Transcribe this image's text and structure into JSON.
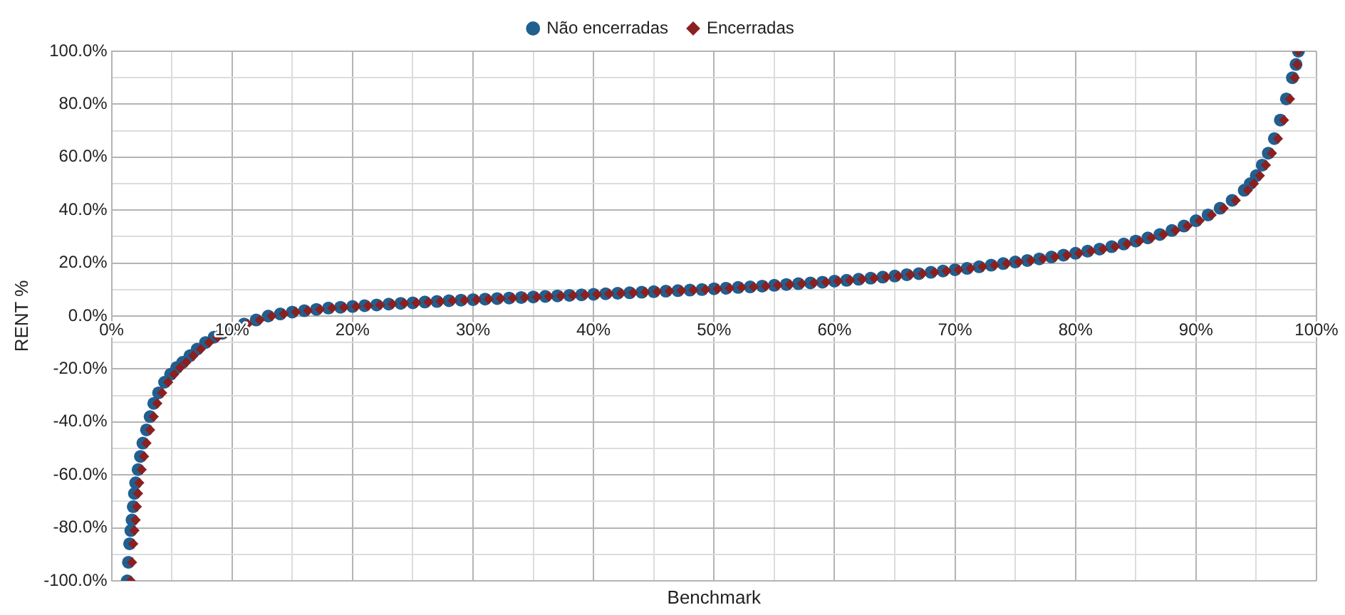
{
  "chart_data": {
    "type": "scatter",
    "xlabel": "Benchmark",
    "ylabel": "RENT %",
    "legend": "top",
    "grid": true,
    "xlim": [
      0,
      100
    ],
    "xticks": [
      {
        "value": 0,
        "label": "0%"
      },
      {
        "value": 5,
        "label": null
      },
      {
        "value": 10,
        "label": "10%"
      },
      {
        "value": 15,
        "label": null
      },
      {
        "value": 20,
        "label": "20%"
      },
      {
        "value": 25,
        "label": null
      },
      {
        "value": 30,
        "label": "30%"
      },
      {
        "value": 35,
        "label": null
      },
      {
        "value": 40,
        "label": "40%"
      },
      {
        "value": 45,
        "label": null
      },
      {
        "value": 50,
        "label": "50%"
      },
      {
        "value": 55,
        "label": null
      },
      {
        "value": 60,
        "label": "60%"
      },
      {
        "value": 65,
        "label": null
      },
      {
        "value": 70,
        "label": "70%"
      },
      {
        "value": 75,
        "label": null
      },
      {
        "value": 80,
        "label": "80%"
      },
      {
        "value": 85,
        "label": null
      },
      {
        "value": 90,
        "label": "90%"
      },
      {
        "value": 95,
        "label": null
      },
      {
        "value": 100,
        "label": "100%"
      }
    ],
    "ylim": [
      -100,
      100
    ],
    "yticks": [
      {
        "value": -100,
        "label": "-100.0%"
      },
      {
        "value": -90,
        "label": null
      },
      {
        "value": -80,
        "label": "-80.0%"
      },
      {
        "value": -70,
        "label": null
      },
      {
        "value": -60,
        "label": "-60.0%"
      },
      {
        "value": -50,
        "label": null
      },
      {
        "value": -40,
        "label": "-40.0%"
      },
      {
        "value": -30,
        "label": null
      },
      {
        "value": -20,
        "label": "-20.0%"
      },
      {
        "value": -10,
        "label": null
      },
      {
        "value": 0,
        "label": "0.0%"
      },
      {
        "value": 10,
        "label": null
      },
      {
        "value": 20,
        "label": "20.0%"
      },
      {
        "value": 30,
        "label": null
      },
      {
        "value": 40,
        "label": "40.0%"
      },
      {
        "value": 50,
        "label": null
      },
      {
        "value": 60,
        "label": "60.0%"
      },
      {
        "value": 70,
        "label": null
      },
      {
        "value": 80,
        "label": "80.0%"
      },
      {
        "value": 90,
        "label": null
      },
      {
        "value": 100,
        "label": "100.0%"
      }
    ],
    "x": [
      1.3,
      1.4,
      1.5,
      1.6,
      1.7,
      1.8,
      1.9,
      2.0,
      2.2,
      2.4,
      2.6,
      2.9,
      3.2,
      3.5,
      3.9,
      4.4,
      4.9,
      5.4,
      5.9,
      6.5,
      7.1,
      7.8,
      8.5,
      9.2,
      10,
      11,
      12,
      13,
      14,
      15,
      16,
      17,
      18,
      19,
      20,
      21,
      22,
      23,
      24,
      25,
      26,
      27,
      28,
      29,
      30,
      31,
      32,
      33,
      34,
      35,
      36,
      37,
      38,
      39,
      40,
      41,
      42,
      43,
      44,
      45,
      46,
      47,
      48,
      49,
      50,
      51,
      52,
      53,
      54,
      55,
      56,
      57,
      58,
      59,
      60,
      61,
      62,
      63,
      64,
      65,
      66,
      67,
      68,
      69,
      70,
      71,
      72,
      73,
      74,
      75,
      76,
      77,
      78,
      79,
      80,
      81,
      82,
      83,
      84,
      85,
      86,
      87,
      88,
      89,
      90,
      91,
      92,
      93,
      94,
      94.5,
      95,
      95.5,
      96,
      96.5,
      97,
      97.5,
      98,
      98.3,
      98.5
    ],
    "series": [
      {
        "name": "Não encerradas",
        "color": "#215f8f",
        "marker": "circle",
        "values": [
          -100,
          -93,
          -86,
          -81,
          -77,
          -72,
          -67,
          -63,
          -58,
          -53,
          -48,
          -43,
          -38,
          -33,
          -29,
          -25,
          -22,
          -19.5,
          -17.5,
          -15,
          -12.5,
          -10,
          -8,
          -6.5,
          -5,
          -3,
          -1.5,
          0,
          0.8,
          1.5,
          2,
          2.5,
          3,
          3.3,
          3.6,
          3.9,
          4.2,
          4.5,
          4.8,
          5,
          5.3,
          5.5,
          5.8,
          6,
          6.2,
          6.4,
          6.6,
          6.8,
          7,
          7.2,
          7.4,
          7.6,
          7.8,
          8,
          8.2,
          8.4,
          8.6,
          8.8,
          9,
          9.2,
          9.4,
          9.6,
          9.8,
          10,
          10.3,
          10.5,
          10.8,
          11,
          11.3,
          11.6,
          11.9,
          12.2,
          12.5,
          12.8,
          13.2,
          13.5,
          13.9,
          14.3,
          14.7,
          15.1,
          15.6,
          16,
          16.5,
          17,
          17.5,
          18,
          18.6,
          19.2,
          19.8,
          20.4,
          21,
          21.6,
          22.3,
          23,
          23.7,
          24.5,
          25.3,
          26.2,
          27.2,
          28.3,
          29.5,
          30.8,
          32.3,
          34,
          36,
          38.2,
          40.7,
          43.7,
          47.5,
          50,
          53,
          57,
          61.5,
          67,
          74,
          82,
          90,
          95,
          100
        ]
      },
      {
        "name": "Encerradas",
        "color": "#8b2020",
        "marker": "diamond",
        "x": [
          1.6,
          1.7,
          1.8,
          1.9,
          2.0,
          2.1,
          2.2,
          2.3,
          2.5,
          2.7,
          2.9,
          3.2,
          3.5,
          3.8,
          4.2,
          4.7,
          5.2,
          5.7,
          6.2,
          6.8,
          7.4,
          8.1,
          8.8,
          9.5,
          11.3,
          12.3,
          13.3,
          14.3,
          15.3,
          16.3,
          17.3,
          18.3,
          19.3,
          20.3,
          21.3,
          22.3,
          23.3,
          24.3,
          25.3,
          26.3,
          27.3,
          28.3,
          29.3,
          30.3,
          31.3,
          32.3,
          33.3,
          34.3,
          35.3,
          36.3,
          37.3,
          38.3,
          39.3,
          40.3,
          41.3,
          42.3,
          43.3,
          44.3,
          45.3,
          46.3,
          47.3,
          48.3,
          49.3,
          50.3,
          51.3,
          52.3,
          53.3,
          54.3,
          55.3,
          56.3,
          57.3,
          58.3,
          59.3,
          60.3,
          61.3,
          62.3,
          63.3,
          64.3,
          65.3,
          66.3,
          67.3,
          68.3,
          69.3,
          70.3,
          71.3,
          72.3,
          73.3,
          74.3,
          75.3,
          76.3,
          77.3,
          78.3,
          79.3,
          80.3,
          81.3,
          82.3,
          83.3,
          84.3,
          85.3,
          86.3,
          87.3,
          88.3,
          89.3,
          90.3,
          91.3,
          92.3,
          93.3,
          94.3,
          94.8,
          95.3,
          95.8,
          96.3,
          96.8,
          97.3,
          97.8,
          98.2,
          98.4,
          98.5
        ],
        "values": [
          -100,
          -93,
          -86,
          -81,
          -77,
          -72,
          -67,
          -63,
          -58,
          -53,
          -48,
          -43,
          -38,
          -33,
          -29,
          -25,
          -22,
          -19.5,
          -17.5,
          -15,
          -12.5,
          -10,
          -8,
          -6.5,
          -3,
          -1.5,
          0,
          0.8,
          1.5,
          2,
          2.5,
          3,
          3.3,
          3.6,
          3.9,
          4.2,
          4.5,
          4.8,
          5,
          5.3,
          5.5,
          5.8,
          6,
          6.2,
          6.4,
          6.6,
          6.8,
          7,
          7.2,
          7.4,
          7.6,
          7.8,
          8,
          8.2,
          8.4,
          8.6,
          8.8,
          9,
          9.2,
          9.4,
          9.6,
          9.8,
          10,
          10.3,
          10.5,
          10.8,
          11,
          11.3,
          11.6,
          11.9,
          12.2,
          12.5,
          12.8,
          13.2,
          13.5,
          13.9,
          14.3,
          14.7,
          15.1,
          15.6,
          16,
          16.5,
          17,
          17.5,
          18,
          18.6,
          19.2,
          19.8,
          20.4,
          21,
          21.6,
          22.3,
          23,
          23.7,
          24.5,
          25.3,
          26.2,
          27.2,
          28.3,
          29.5,
          30.8,
          32.3,
          34,
          36,
          38.2,
          40.7,
          43.7,
          47.5,
          50,
          53,
          57,
          61.5,
          67,
          74,
          82,
          90,
          95,
          100
        ]
      }
    ]
  }
}
